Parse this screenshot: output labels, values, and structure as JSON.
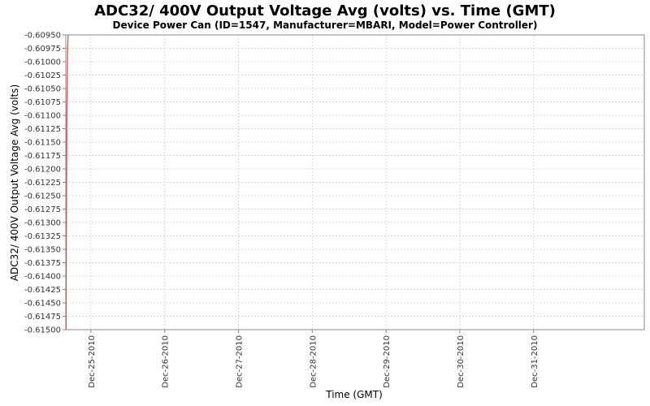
{
  "chart_data": {
    "type": "line",
    "title": "ADC32/ 400V Output Voltage Avg (volts) vs. Time (GMT)",
    "subtitle": "Device Power Can (ID=1547, Manufacturer=MBARI, Model=Power Controller)",
    "xlabel": "Time (GMT)",
    "ylabel": "ADC32/ 400V Output Voltage Avg (volts)",
    "x_ticks": [
      "Dec-25-2010",
      "Dec-26-2010",
      "Dec-27-2010",
      "Dec-28-2010",
      "Dec-29-2010",
      "Dec-30-2010",
      "Dec-31-2010"
    ],
    "xlim": [
      "2010-12-24T15:50",
      "2011-01-01T12:00"
    ],
    "y_ticks": [
      "-0.60950",
      "-0.60975",
      "-0.61000",
      "-0.61025",
      "-0.61050",
      "-0.61075",
      "-0.61100",
      "-0.61125",
      "-0.61150",
      "-0.61175",
      "-0.61200",
      "-0.61225",
      "-0.61250",
      "-0.61275",
      "-0.61300",
      "-0.61325",
      "-0.61350",
      "-0.61375",
      "-0.61400",
      "-0.61425",
      "-0.61450",
      "-0.61475",
      "-0.61500"
    ],
    "ylim": [
      -0.615,
      -0.6095
    ],
    "grid": true,
    "series": [
      {
        "color": "#e05050",
        "points": [
          {
            "x": "2010-12-24T15:55",
            "y": -0.615
          },
          {
            "x": "2010-12-24T16:00",
            "y": -0.6135
          },
          {
            "x": "2010-12-24T16:10",
            "y": -0.611
          },
          {
            "x": "2010-12-24T16:25",
            "y": -0.6098
          },
          {
            "x": "2010-12-24T16:35",
            "y": -0.6095
          }
        ]
      }
    ]
  }
}
